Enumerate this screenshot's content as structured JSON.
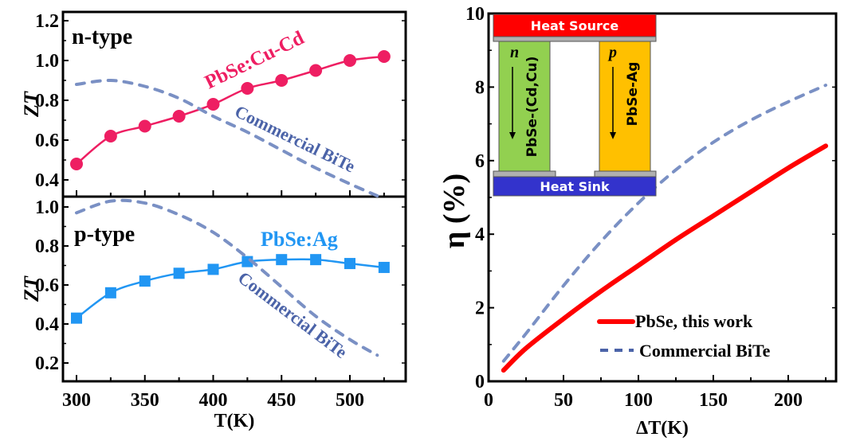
{
  "chart_data": [
    {
      "type": "line",
      "panel_label": "n-type",
      "xlabel": "",
      "ylabel": "ZT",
      "xlim": [
        290,
        540
      ],
      "ylim": [
        0.3,
        1.25
      ],
      "yticks": [
        "1.2",
        "1.0",
        "0.8",
        "0.6",
        "0.4"
      ],
      "ytick_values": [
        1.2,
        1.0,
        0.8,
        0.6,
        0.4
      ],
      "series": [
        {
          "name": "PbSe:Cu-Cd",
          "style": "line+circle",
          "color": "#EE1E62",
          "x": [
            300,
            325,
            350,
            375,
            400,
            425,
            450,
            475,
            500,
            525
          ],
          "y": [
            0.48,
            0.62,
            0.67,
            0.72,
            0.78,
            0.86,
            0.9,
            0.95,
            1.0,
            1.02
          ]
        },
        {
          "name": "Commercial BiTe",
          "style": "dashed",
          "color": "#7A90C4",
          "x": [
            300,
            325,
            350,
            375,
            400,
            425,
            450,
            475,
            500,
            520
          ],
          "y": [
            0.88,
            0.9,
            0.87,
            0.81,
            0.72,
            0.64,
            0.55,
            0.46,
            0.38,
            0.32
          ]
        }
      ]
    },
    {
      "type": "line",
      "panel_label": "p-type",
      "xlabel": "T(K)",
      "ylabel": "ZT",
      "xlim": [
        290,
        540
      ],
      "ylim": [
        0.1,
        1.05
      ],
      "xticks": [
        "300",
        "350",
        "400",
        "450",
        "500"
      ],
      "xtick_values": [
        300,
        350,
        400,
        450,
        500
      ],
      "yticks": [
        "1.0",
        "0.8",
        "0.6",
        "0.4",
        "0.2"
      ],
      "ytick_values": [
        1.0,
        0.8,
        0.6,
        0.4,
        0.2
      ],
      "series": [
        {
          "name": "PbSe:Ag",
          "style": "line+square",
          "color": "#2196F3",
          "x": [
            300,
            325,
            350,
            375,
            400,
            425,
            450,
            475,
            500,
            525
          ],
          "y": [
            0.43,
            0.56,
            0.62,
            0.66,
            0.68,
            0.72,
            0.73,
            0.73,
            0.71,
            0.69
          ]
        },
        {
          "name": "Commercial BiTe",
          "style": "dashed",
          "color": "#7A90C4",
          "x": [
            300,
            325,
            350,
            375,
            400,
            425,
            450,
            475,
            500,
            520
          ],
          "y": [
            0.97,
            1.03,
            1.02,
            0.96,
            0.87,
            0.74,
            0.59,
            0.44,
            0.32,
            0.24
          ]
        }
      ]
    },
    {
      "type": "line",
      "xlabel": "ΔT(K)",
      "ylabel": "η (%)",
      "xlim": [
        0,
        232
      ],
      "ylim": [
        0,
        10
      ],
      "xticks": [
        "0",
        "50",
        "100",
        "150",
        "200"
      ],
      "xtick_values": [
        0,
        50,
        100,
        150,
        200
      ],
      "yticks": [
        "0",
        "2",
        "4",
        "6",
        "8",
        "10"
      ],
      "ytick_values": [
        0,
        2,
        4,
        6,
        8,
        10
      ],
      "legend": "bottom-right",
      "series": [
        {
          "name": "PbSe, this work",
          "style": "solid",
          "color": "#FF0000",
          "x": [
            10,
            25,
            50,
            75,
            100,
            125,
            150,
            175,
            200,
            225
          ],
          "y": [
            0.3,
            0.9,
            1.7,
            2.45,
            3.15,
            3.85,
            4.5,
            5.15,
            5.8,
            6.4
          ]
        },
        {
          "name": "Commercial BiTe",
          "style": "dashed",
          "color": "#7A90C4",
          "x": [
            10,
            25,
            50,
            75,
            100,
            125,
            150,
            175,
            200,
            225
          ],
          "y": [
            0.55,
            1.3,
            2.6,
            3.8,
            4.85,
            5.75,
            6.5,
            7.1,
            7.6,
            8.05
          ]
        }
      ]
    }
  ],
  "inset": {
    "heat_source": "Heat Source",
    "heat_sink": "Heat Sink",
    "n_leg_symbol": "n",
    "n_leg_label": "PbSe-(Cd,Cu)",
    "p_leg_symbol": "p",
    "p_leg_label": "PbSe-Ag",
    "colors": {
      "source": "#FF0000",
      "sink": "#3333CC",
      "n_leg": "#92D050",
      "p_leg": "#FFC000",
      "contact": "#B0B0B0"
    }
  },
  "annotations": {
    "n_series_label": "PbSe:Cu-Cd",
    "n_bite_label": "Commercial BiTe",
    "p_series_label": "PbSe:Ag",
    "p_bite_label": "Commercial BiTe"
  }
}
